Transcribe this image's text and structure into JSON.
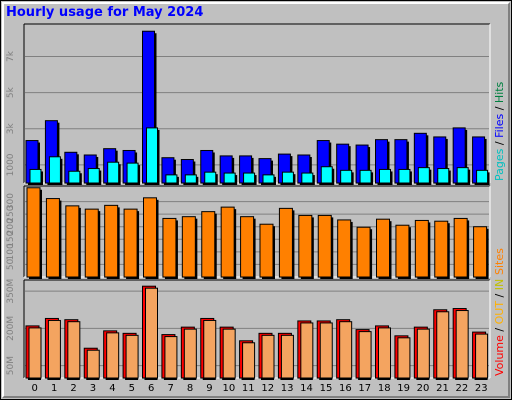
{
  "title": "Hourly usage for May 2024",
  "chart_data": [
    {
      "type": "bar",
      "panel": "pages-files-hits",
      "categories": [
        "0",
        "1",
        "2",
        "3",
        "4",
        "5",
        "6",
        "7",
        "8",
        "9",
        "10",
        "11",
        "12",
        "13",
        "14",
        "15",
        "16",
        "17",
        "18",
        "19",
        "20",
        "21",
        "22",
        "23"
      ],
      "y_ticks": [
        {
          "value": 1000,
          "label": "1000"
        },
        {
          "value": 3000,
          "label": "3k"
        },
        {
          "value": 5000,
          "label": "5k"
        },
        {
          "value": 7000,
          "label": "7k"
        }
      ],
      "ylim": [
        0,
        8800
      ],
      "grid": true,
      "series": [
        {
          "name": "Hits",
          "color": "#008040",
          "values": [
            2350,
            3450,
            1700,
            1550,
            1900,
            1800,
            8400,
            1400,
            1300,
            1800,
            1500,
            1500,
            1350,
            1600,
            1550,
            2350,
            2150,
            2100,
            2400,
            2400,
            2750,
            2550,
            3050,
            2550
          ]
        },
        {
          "name": "Files",
          "color": "#0000ff",
          "values": [
            2350,
            3450,
            1700,
            1550,
            1900,
            1800,
            8400,
            1400,
            1300,
            1800,
            1500,
            1500,
            1350,
            1600,
            1550,
            2350,
            2150,
            2100,
            2400,
            2400,
            2750,
            2550,
            3050,
            2550
          ]
        },
        {
          "name": "Pages",
          "color": "#00ffff",
          "values": [
            750,
            1450,
            650,
            800,
            1150,
            1100,
            3050,
            450,
            450,
            600,
            550,
            550,
            450,
            600,
            550,
            900,
            700,
            700,
            750,
            750,
            850,
            800,
            850,
            700
          ]
        }
      ],
      "legend": [
        {
          "text": "Pages",
          "color": "#00c0c0"
        },
        {
          "text": " / ",
          "color": "#000000"
        },
        {
          "text": "Files",
          "color": "#0000ff"
        },
        {
          "text": " / ",
          "color": "#000000"
        },
        {
          "text": "Hits",
          "color": "#008040"
        }
      ],
      "legend_placement": "right, vertical"
    },
    {
      "type": "bar",
      "panel": "sites",
      "categories": [
        "0",
        "1",
        "2",
        "3",
        "4",
        "5",
        "6",
        "7",
        "8",
        "9",
        "10",
        "11",
        "12",
        "13",
        "14",
        "15",
        "16",
        "17",
        "18",
        "19",
        "20",
        "21",
        "22",
        "23"
      ],
      "y_ticks": [
        {
          "value": 50,
          "label": "50"
        },
        {
          "value": 100,
          "label": "100"
        },
        {
          "value": 150,
          "label": "150"
        },
        {
          "value": 200,
          "label": "200"
        },
        {
          "value": 250,
          "label": "250"
        },
        {
          "value": 300,
          "label": "300"
        }
      ],
      "ylim": [
        0,
        362
      ],
      "grid": true,
      "series": [
        {
          "name": "Sites",
          "color": "#ff8000",
          "values": [
            355,
            312,
            283,
            270,
            285,
            270,
            315,
            233,
            240,
            260,
            278,
            240,
            210,
            273,
            245,
            245,
            227,
            198,
            230,
            206,
            225,
            222,
            233,
            200
          ]
        }
      ],
      "legend": [
        {
          "text": "Sites",
          "color": "#ff8000"
        }
      ],
      "legend_placement": "right, vertical"
    },
    {
      "type": "bar",
      "panel": "volume",
      "categories": [
        "0",
        "1",
        "2",
        "3",
        "4",
        "5",
        "6",
        "7",
        "8",
        "9",
        "10",
        "11",
        "12",
        "13",
        "14",
        "15",
        "16",
        "17",
        "18",
        "19",
        "20",
        "21",
        "22",
        "23"
      ],
      "y_ticks": [
        {
          "value": 50,
          "label": "50M"
        },
        {
          "value": 200,
          "label": "200M"
        },
        {
          "value": 350,
          "label": "350M"
        }
      ],
      "ylim": [
        0,
        395
      ],
      "grid": true,
      "series": [
        {
          "name": "Volume",
          "color": "#ff0000",
          "values": [
            210,
            240,
            235,
            120,
            190,
            180,
            370,
            175,
            205,
            240,
            205,
            150,
            180,
            180,
            230,
            230,
            235,
            195,
            210,
            170,
            205,
            275,
            280,
            185
          ]
        },
        {
          "name": "Volume (light)",
          "color": "#f4a460",
          "values": [
            210,
            240,
            235,
            120,
            190,
            180,
            370,
            175,
            205,
            240,
            205,
            150,
            180,
            180,
            230,
            230,
            235,
            195,
            210,
            170,
            205,
            275,
            280,
            185
          ]
        }
      ],
      "legend": [
        {
          "text": "Volume",
          "color": "#ff0000"
        },
        {
          "text": " / ",
          "color": "#000000"
        },
        {
          "text": "OUT",
          "color": "#ffb000"
        },
        {
          "text": " / ",
          "color": "#000000"
        },
        {
          "text": "IN",
          "color": "#c0c000"
        }
      ],
      "legend_placement": "right, vertical"
    }
  ]
}
